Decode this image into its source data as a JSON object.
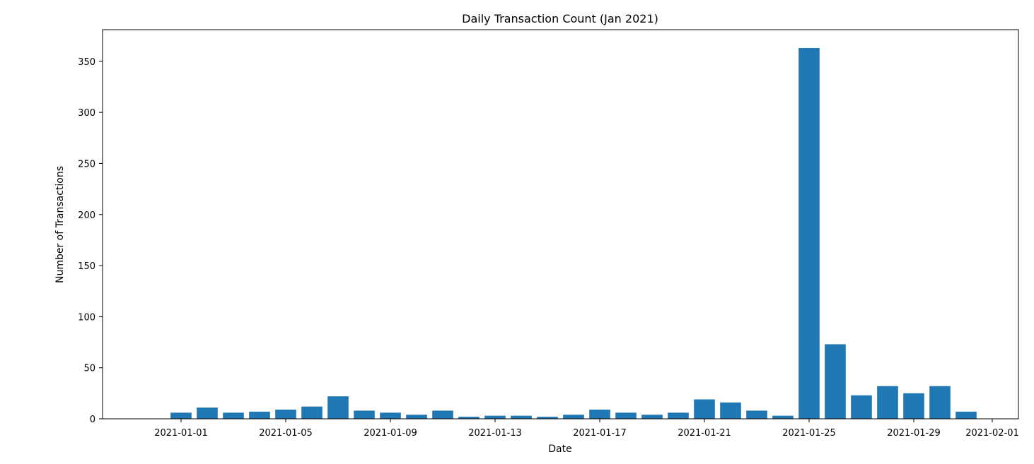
{
  "chart_data": {
    "type": "bar",
    "title": "Daily Transaction Count (Jan 2021)",
    "xlabel": "Date",
    "ylabel": "Number of Transactions",
    "x": [
      "2021-01-01",
      "2021-01-02",
      "2021-01-03",
      "2021-01-04",
      "2021-01-05",
      "2021-01-06",
      "2021-01-07",
      "2021-01-08",
      "2021-01-09",
      "2021-01-10",
      "2021-01-11",
      "2021-01-12",
      "2021-01-13",
      "2021-01-14",
      "2021-01-15",
      "2021-01-16",
      "2021-01-17",
      "2021-01-18",
      "2021-01-19",
      "2021-01-20",
      "2021-01-21",
      "2021-01-22",
      "2021-01-23",
      "2021-01-24",
      "2021-01-25",
      "2021-01-26",
      "2021-01-27",
      "2021-01-28",
      "2021-01-29",
      "2021-01-30",
      "2021-01-31"
    ],
    "values": [
      6,
      11,
      6,
      7,
      9,
      12,
      22,
      8,
      6,
      4,
      8,
      2,
      3,
      3,
      2,
      4,
      9,
      6,
      4,
      6,
      19,
      16,
      8,
      3,
      363,
      73,
      23,
      32,
      25,
      32,
      7
    ],
    "xticks": [
      "2021-01-01",
      "2021-01-05",
      "2021-01-09",
      "2021-01-13",
      "2021-01-17",
      "2021-01-21",
      "2021-01-25",
      "2021-01-29",
      "2021-02-01"
    ],
    "yticks": [
      0,
      50,
      100,
      150,
      200,
      250,
      300,
      350
    ],
    "xlim": [
      "2020-12-29",
      "2021-02-02"
    ],
    "ylim": [
      0,
      381
    ],
    "grid": false,
    "bar_color": "#1f77b4"
  }
}
